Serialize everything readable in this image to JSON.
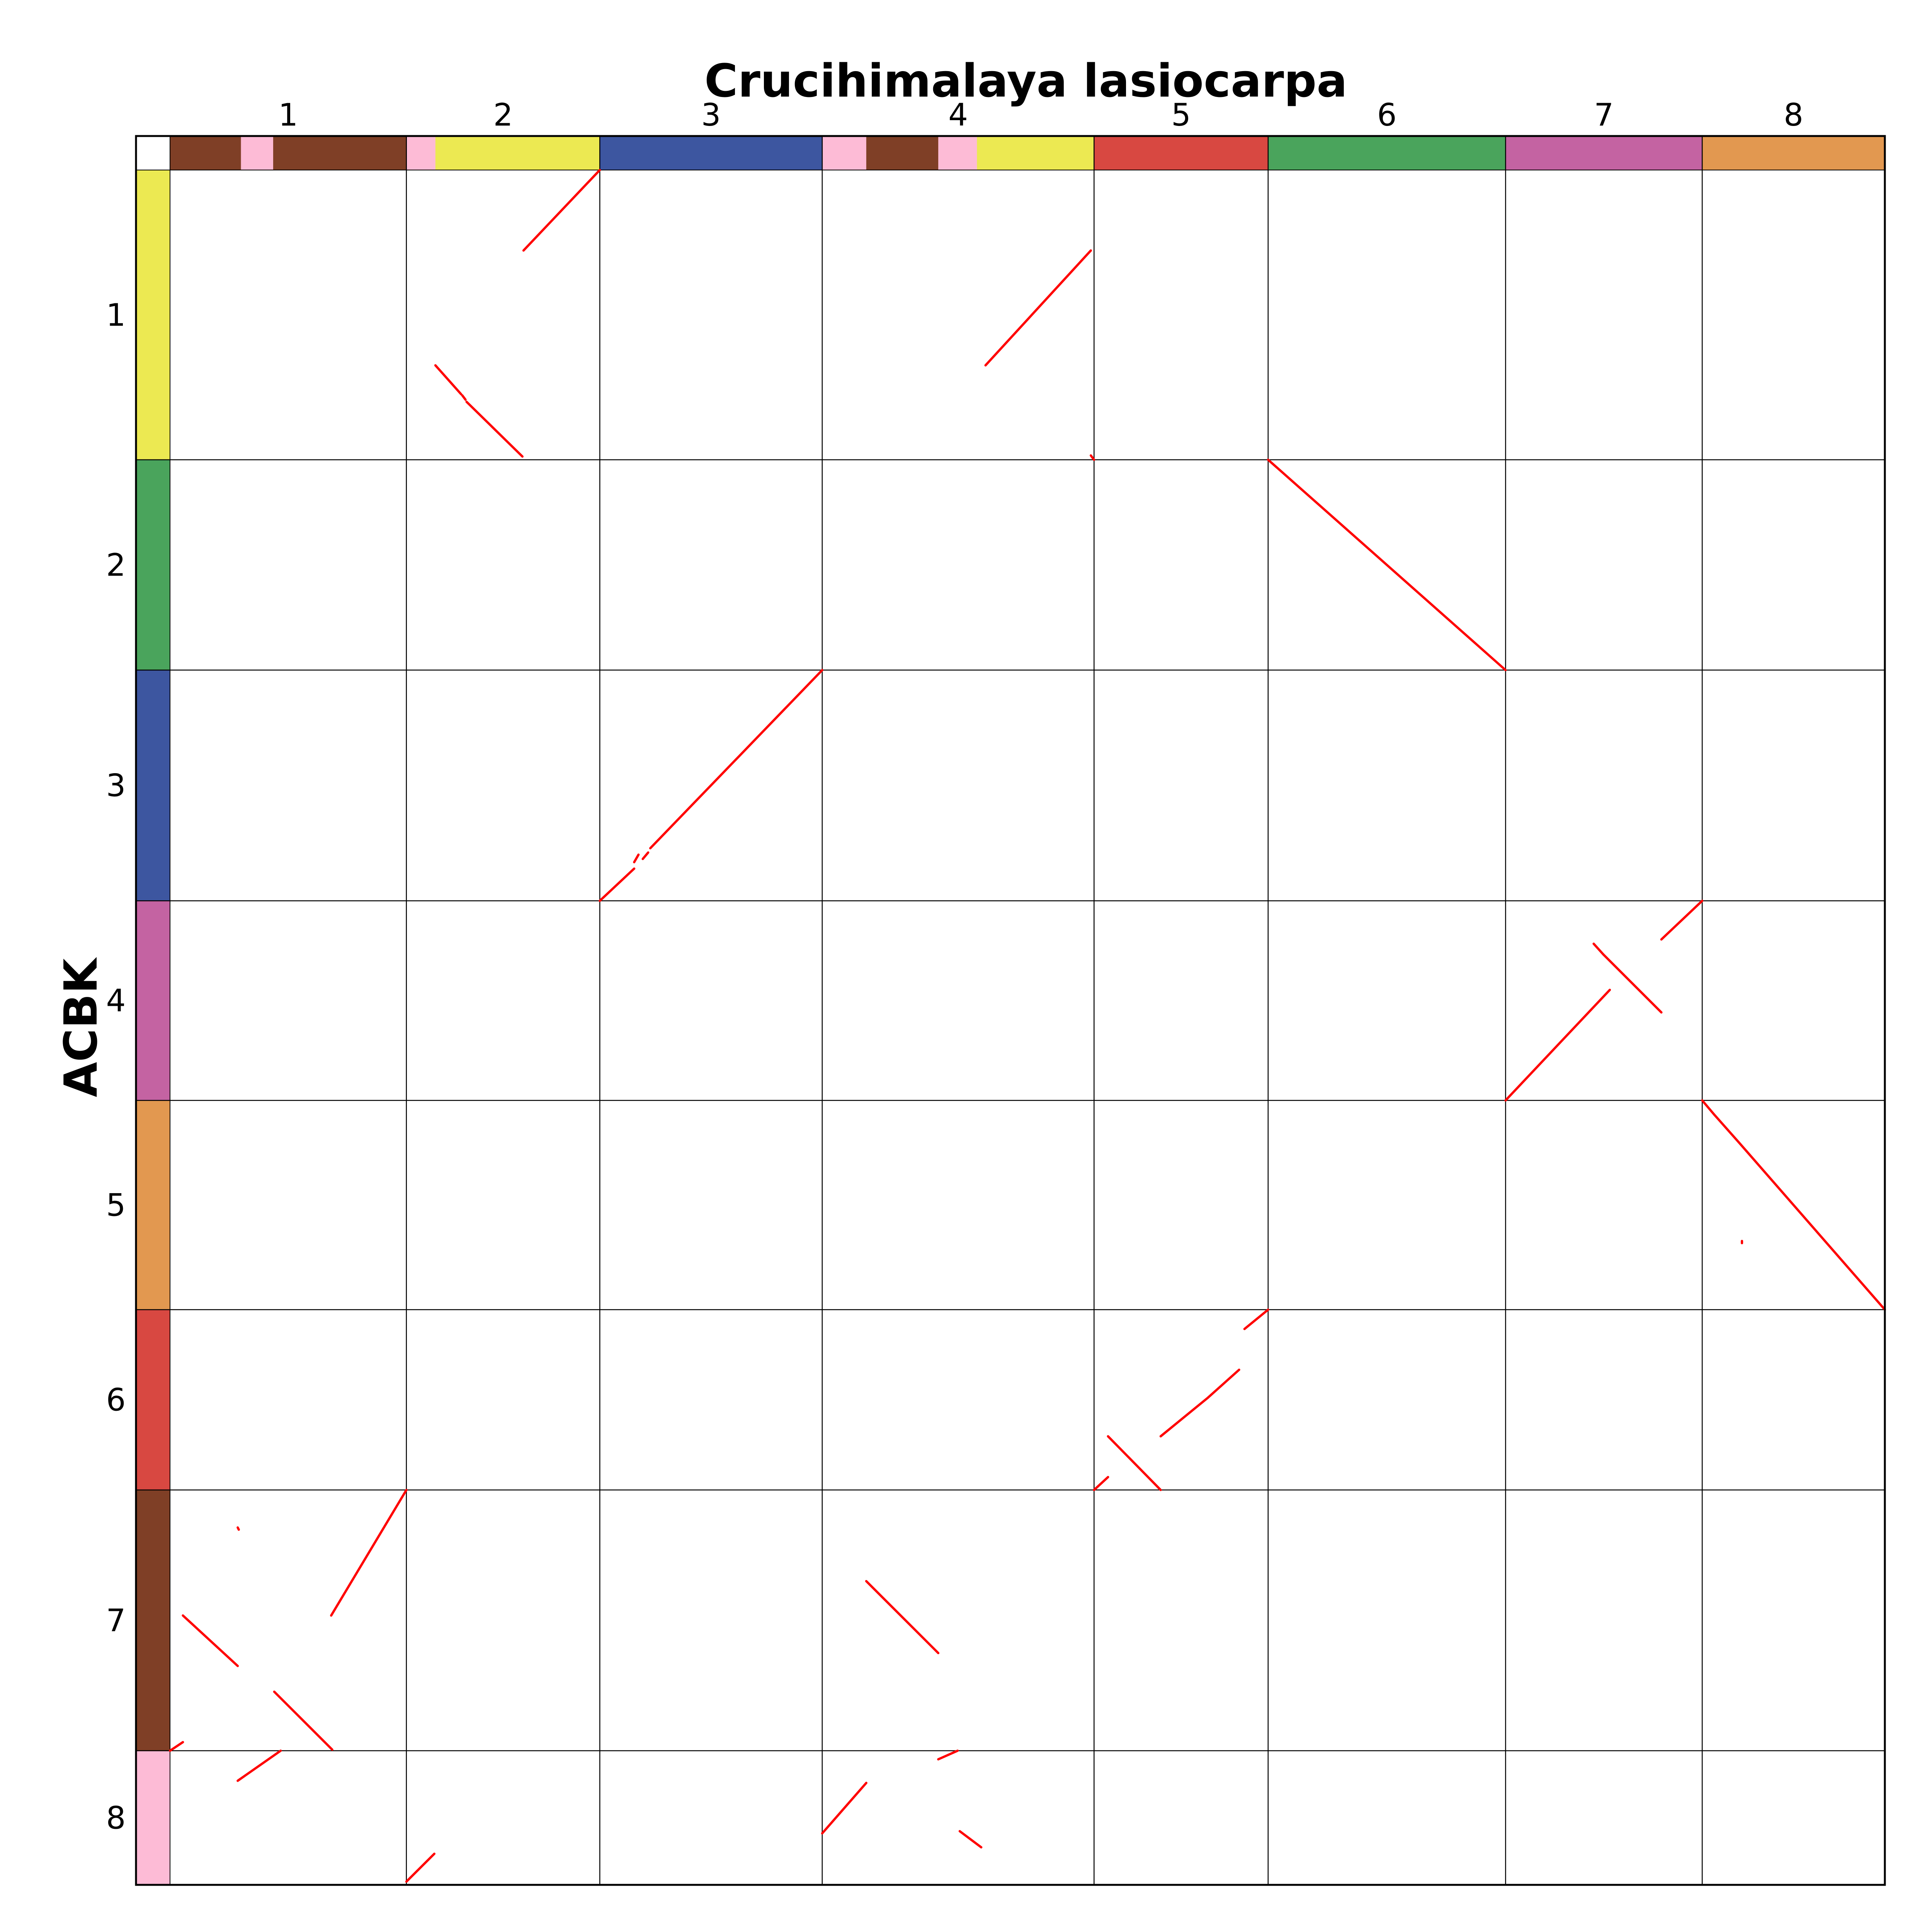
{
  "chart_data": {
    "type": "dotplot",
    "title": "Crucihimalaya lasiocarpa",
    "xlabel": "Crucihimalaya lasiocarpa",
    "ylabel": "ACBK",
    "x_chromosomes": [
      {
        "label": "1",
        "start": 0,
        "end": 220
      },
      {
        "label": "2",
        "start": 220,
        "end": 400
      },
      {
        "label": "3",
        "start": 400,
        "end": 607
      },
      {
        "label": "4",
        "start": 607,
        "end": 860
      },
      {
        "label": "5",
        "start": 860,
        "end": 1022
      },
      {
        "label": "6",
        "start": 1022,
        "end": 1243
      },
      {
        "label": "7",
        "start": 1243,
        "end": 1426
      },
      {
        "label": "8",
        "start": 1426,
        "end": 1596
      }
    ],
    "y_chromosomes": [
      {
        "label": "1",
        "start": 0,
        "end": 270
      },
      {
        "label": "2",
        "start": 270,
        "end": 466
      },
      {
        "label": "3",
        "start": 466,
        "end": 681
      },
      {
        "label": "4",
        "start": 681,
        "end": 867
      },
      {
        "label": "5",
        "start": 867,
        "end": 1062
      },
      {
        "label": "6",
        "start": 1062,
        "end": 1230
      },
      {
        "label": "7",
        "start": 1230,
        "end": 1473
      },
      {
        "label": "8",
        "start": 1473,
        "end": 1598
      }
    ],
    "x_color_bands": [
      {
        "start": 0,
        "end": 66,
        "color": "#7f3f26"
      },
      {
        "start": 66,
        "end": 96,
        "color": "#fdbbd6"
      },
      {
        "start": 96,
        "end": 107,
        "color": "#7f3f26"
      },
      {
        "start": 107,
        "end": 220,
        "color": "#7f3f26"
      },
      {
        "start": 220,
        "end": 247,
        "color": "#fdbbd6"
      },
      {
        "start": 247,
        "end": 400,
        "color": "#ece952"
      },
      {
        "start": 400,
        "end": 607,
        "color": "#3d56a0"
      },
      {
        "start": 607,
        "end": 648,
        "color": "#fdbbd6"
      },
      {
        "start": 648,
        "end": 715,
        "color": "#7f3f26"
      },
      {
        "start": 715,
        "end": 751,
        "color": "#fdbbd6"
      },
      {
        "start": 751,
        "end": 860,
        "color": "#ece952"
      },
      {
        "start": 860,
        "end": 1022,
        "color": "#d84841"
      },
      {
        "start": 1022,
        "end": 1243,
        "color": "#4aa45c"
      },
      {
        "start": 1243,
        "end": 1426,
        "color": "#c463a2"
      },
      {
        "start": 1426,
        "end": 1596,
        "color": "#e29850"
      }
    ],
    "y_color_bands": [
      {
        "start": 0,
        "end": 270,
        "color": "#ece952"
      },
      {
        "start": 270,
        "end": 466,
        "color": "#4aa45c"
      },
      {
        "start": 466,
        "end": 681,
        "color": "#3d56a0"
      },
      {
        "start": 681,
        "end": 867,
        "color": "#c463a2"
      },
      {
        "start": 867,
        "end": 1062,
        "color": "#e29850"
      },
      {
        "start": 1062,
        "end": 1230,
        "color": "#d84841"
      },
      {
        "start": 1230,
        "end": 1473,
        "color": "#7f3f26"
      },
      {
        "start": 1473,
        "end": 1598,
        "color": "#fdbbd6"
      }
    ],
    "segments": [
      {
        "x": [
          329,
          400
        ],
        "y": [
          75,
          0
        ]
      },
      {
        "x": [
          247,
          271
        ],
        "y": [
          182,
          209
        ]
      },
      {
        "x": [
          272,
          275
        ],
        "y": [
          210,
          214
        ]
      },
      {
        "x": [
          276,
          328
        ],
        "y": [
          216,
          267
        ]
      },
      {
        "x": [
          759,
          857
        ],
        "y": [
          182,
          75
        ]
      },
      {
        "x": [
          857,
          860
        ],
        "y": [
          266,
          270
        ]
      },
      {
        "x": [
          1022,
          1243
        ],
        "y": [
          270,
          466
        ]
      },
      {
        "x": [
          400,
          432
        ],
        "y": [
          681,
          651
        ]
      },
      {
        "x": [
          432,
          436
        ],
        "y": [
          645,
          638
        ]
      },
      {
        "x": [
          440,
          445
        ],
        "y": [
          642,
          636
        ]
      },
      {
        "x": [
          447,
          607
        ],
        "y": [
          632,
          466
        ]
      },
      {
        "x": [
          1243,
          1340
        ],
        "y": [
          867,
          764
        ]
      },
      {
        "x": [
          1325,
          1334
        ],
        "y": [
          721,
          731
        ]
      },
      {
        "x": [
          1334,
          1388
        ],
        "y": [
          731,
          785
        ]
      },
      {
        "x": [
          1388,
          1426
        ],
        "y": [
          717,
          681
        ]
      },
      {
        "x": [
          1426,
          1437
        ],
        "y": [
          867,
          880
        ]
      },
      {
        "x": [
          1437,
          1460
        ],
        "y": [
          880,
          906
        ]
      },
      {
        "x": [
          1460,
          1467
        ],
        "y": [
          906,
          914
        ]
      },
      {
        "x": [
          1467,
          1596
        ],
        "y": [
          914,
          1062
        ]
      },
      {
        "x": [
          1463,
          1463
        ],
        "y": [
          998,
          1000
        ]
      },
      {
        "x": [
          860,
          873
        ],
        "y": [
          1230,
          1218
        ]
      },
      {
        "x": [
          873,
          922
        ],
        "y": [
          1180,
          1230
        ]
      },
      {
        "x": [
          922,
          966
        ],
        "y": [
          1180,
          1144
        ]
      },
      {
        "x": [
          966,
          995
        ],
        "y": [
          1144,
          1118
        ]
      },
      {
        "x": [
          1000,
          1022
        ],
        "y": [
          1080,
          1062
        ]
      },
      {
        "x": [
          12,
          63
        ],
        "y": [
          1347,
          1394
        ]
      },
      {
        "x": [
          63,
          64
        ],
        "y": [
          1265,
          1267
        ]
      },
      {
        "x": [
          150,
          220
        ],
        "y": [
          1347,
          1230
        ]
      },
      {
        "x": [
          97,
          151
        ],
        "y": [
          1418,
          1472
        ]
      },
      {
        "x": [
          0,
          12
        ],
        "y": [
          1473,
          1465
        ]
      },
      {
        "x": [
          63,
          103
        ],
        "y": [
          1501,
          1473
        ]
      },
      {
        "x": [
          220,
          246
        ],
        "y": [
          1595,
          1569
        ]
      },
      {
        "x": [
          648,
          715
        ],
        "y": [
          1315,
          1382
        ]
      },
      {
        "x": [
          607,
          648
        ],
        "y": [
          1550,
          1503
        ]
      },
      {
        "x": [
          715,
          733
        ],
        "y": [
          1481,
          1473
        ]
      },
      {
        "x": [
          735,
          755
        ],
        "y": [
          1548,
          1563
        ]
      }
    ]
  }
}
